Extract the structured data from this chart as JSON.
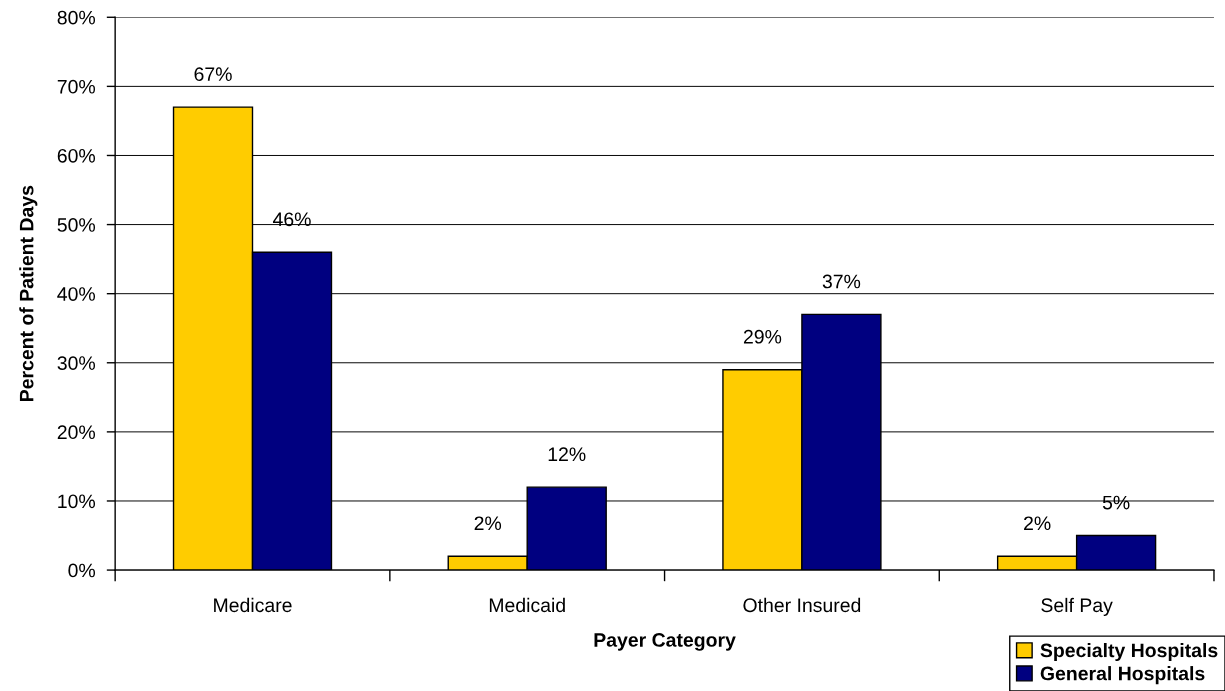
{
  "chart_data": {
    "type": "bar",
    "xlabel": "Payer Category",
    "ylabel": "Percent of Patient Days",
    "categories": [
      "Medicare",
      "Medicaid",
      "Other Insured",
      "Self Pay"
    ],
    "series": [
      {
        "name": "Specialty Hospitals",
        "color": "#ffcc00",
        "values": [
          67,
          2,
          29,
          2
        ],
        "value_labels": [
          "67%",
          "2%",
          "29%",
          "2%"
        ]
      },
      {
        "name": "General Hospitals",
        "color": "#000080",
        "values": [
          46,
          12,
          37,
          5
        ],
        "value_labels": [
          "46%",
          "12%",
          "37%",
          "5%"
        ]
      }
    ],
    "ylim": [
      0,
      80
    ],
    "yticks": [
      {
        "value": 0,
        "label": "0%"
      },
      {
        "value": 10,
        "label": "10%"
      },
      {
        "value": 20,
        "label": "20%"
      },
      {
        "value": 30,
        "label": "30%"
      },
      {
        "value": 40,
        "label": "40%"
      },
      {
        "value": 50,
        "label": "50%"
      },
      {
        "value": 60,
        "label": "60%"
      },
      {
        "value": 70,
        "label": "70%"
      },
      {
        "value": 80,
        "label": "80%"
      }
    ],
    "grid": "y",
    "legend": "bottom right"
  }
}
